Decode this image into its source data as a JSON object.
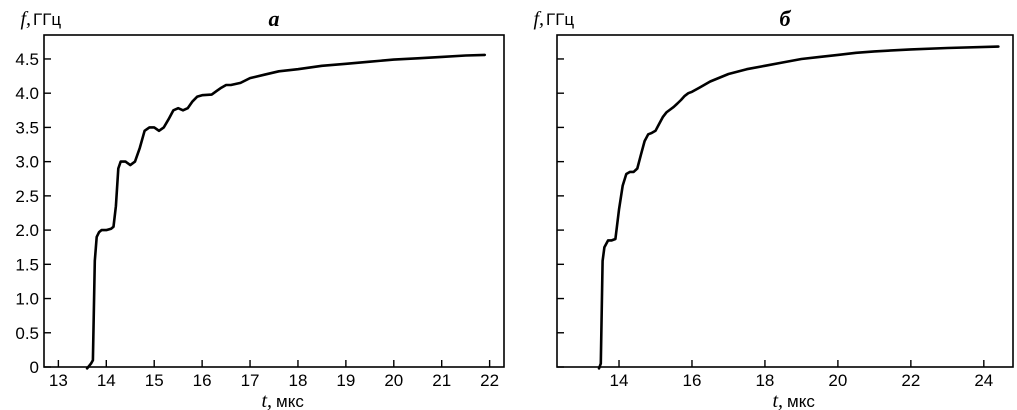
{
  "chart_data": [
    {
      "type": "line",
      "panel_label": "а",
      "ylabel_symbol": "f,",
      "ylabel_unit": "ГГц",
      "xlabel_symbol": "t,",
      "xlabel_unit": "мкс",
      "xlim": [
        12.7,
        22.3
      ],
      "ylim": [
        0,
        4.85
      ],
      "xticks": [
        13,
        14,
        15,
        16,
        17,
        18,
        19,
        20,
        21,
        22
      ],
      "xtick_labels": [
        "13",
        "14",
        "15",
        "16",
        "17",
        "18",
        "19",
        "20",
        "21",
        "22"
      ],
      "yticks": [
        0,
        0.5,
        1.0,
        1.5,
        2.0,
        2.5,
        3.0,
        3.5,
        4.0,
        4.5
      ],
      "ytick_labels": [
        "0",
        "0.5",
        "1.0",
        "1.5",
        "2.0",
        "2.5",
        "3.0",
        "3.5",
        "4.0",
        "4.5"
      ],
      "grid": false,
      "series": [
        {
          "x": [
            13.6,
            13.68,
            13.72,
            13.76,
            13.8,
            13.85,
            13.9,
            14.0,
            14.1,
            14.15,
            14.2,
            14.25,
            14.3,
            14.4,
            14.5,
            14.6,
            14.7,
            14.8,
            14.9,
            15.0,
            15.1,
            15.2,
            15.3,
            15.4,
            15.5,
            15.6,
            15.7,
            15.8,
            15.9,
            16.0,
            16.2,
            16.3,
            16.4,
            16.5,
            16.6,
            16.8,
            17.0,
            17.3,
            17.6,
            18.0,
            18.5,
            19.0,
            19.5,
            20.0,
            20.5,
            21.0,
            21.5,
            21.9
          ],
          "y": [
            -0.02,
            0.05,
            0.1,
            1.55,
            1.9,
            1.97,
            2.0,
            2.0,
            2.02,
            2.05,
            2.35,
            2.9,
            3.0,
            3.0,
            2.95,
            3.0,
            3.2,
            3.45,
            3.5,
            3.5,
            3.45,
            3.5,
            3.62,
            3.75,
            3.78,
            3.75,
            3.78,
            3.88,
            3.95,
            3.97,
            3.98,
            4.03,
            4.08,
            4.12,
            4.12,
            4.15,
            4.22,
            4.27,
            4.32,
            4.35,
            4.4,
            4.43,
            4.46,
            4.49,
            4.51,
            4.53,
            4.55,
            4.56
          ]
        }
      ]
    },
    {
      "type": "line",
      "panel_label": "б",
      "ylabel_symbol": "f,",
      "ylabel_unit": "ГГц",
      "xlabel_symbol": "t,",
      "xlabel_unit": "мкс",
      "xlim": [
        12.3,
        24.8
      ],
      "ylim": [
        0,
        4.85
      ],
      "xticks": [
        14,
        16,
        18,
        20,
        22,
        24
      ],
      "xtick_labels": [
        "14",
        "16",
        "18",
        "20",
        "22",
        "24"
      ],
      "yticks": [
        0,
        0.5,
        1.0,
        1.5,
        2.0,
        2.5,
        3.0,
        3.5,
        4.0,
        4.5
      ],
      "ytick_labels": [],
      "grid": false,
      "series": [
        {
          "x": [
            13.45,
            13.5,
            13.55,
            13.6,
            13.7,
            13.8,
            13.9,
            14.0,
            14.1,
            14.2,
            14.3,
            14.4,
            14.5,
            14.6,
            14.7,
            14.8,
            14.9,
            15.0,
            15.1,
            15.2,
            15.3,
            15.4,
            15.5,
            15.6,
            15.7,
            15.8,
            15.9,
            16.0,
            16.2,
            16.5,
            17.0,
            17.5,
            18.0,
            18.5,
            19.0,
            19.5,
            20.0,
            20.5,
            21.0,
            22.0,
            23.0,
            24.4
          ],
          "y": [
            -0.02,
            0.05,
            1.55,
            1.75,
            1.85,
            1.85,
            1.87,
            2.3,
            2.65,
            2.82,
            2.85,
            2.85,
            2.9,
            3.1,
            3.3,
            3.4,
            3.42,
            3.45,
            3.55,
            3.65,
            3.72,
            3.76,
            3.8,
            3.85,
            3.9,
            3.96,
            4.0,
            4.02,
            4.08,
            4.17,
            4.28,
            4.35,
            4.4,
            4.45,
            4.5,
            4.53,
            4.56,
            4.59,
            4.61,
            4.64,
            4.66,
            4.68
          ]
        }
      ]
    }
  ]
}
